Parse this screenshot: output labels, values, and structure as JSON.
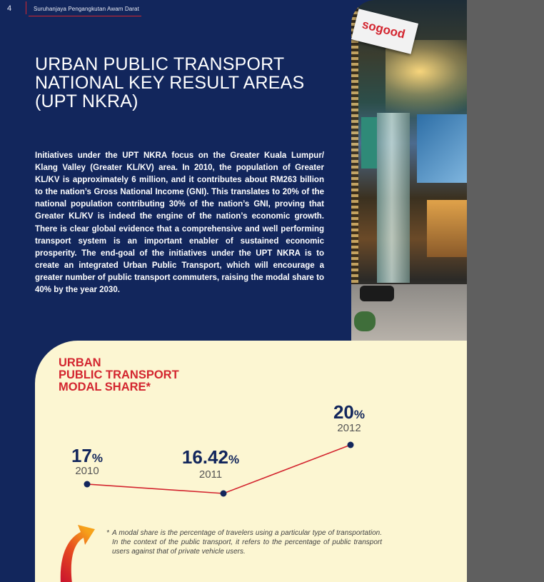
{
  "header": {
    "page_number": "4",
    "running_title": "Suruhanjaya Pengangkutan Awam Darat"
  },
  "title": {
    "line1": "URBAN PUBLIC TRANSPORT",
    "line2": "NATIONAL KEY RESULT AREAS",
    "line3": "(UPT NKRA)"
  },
  "intro": "Initiatives under the UPT NKRA focus on the Greater Kuala Lumpur/ Klang Valley (Greater KL/KV) area. In 2010, the population of Greater KL/KV is approximately 6 million, and it contributes about RM263 billion to the nation’s Gross National Income (GNI). This translates to 20% of the national population contributing 30% of the nation’s GNI, proving that Greater KL/KV is indeed the engine of the nation’s economic growth. There is clear global evidence that a comprehensive and well performing transport system is an important enabler of sustained economic prosperity. The end-goal of the initiatives under the UPT NKRA is to create an integrated Urban Public Transport, which will encourage a greater number of public transport commuters, raising the modal share to 40% by the year 2030.",
  "photo": {
    "sign_text": "sogood"
  },
  "chart_title": {
    "line1": "URBAN",
    "line2": "PUBLIC TRANSPORT",
    "line3": "MODAL SHARE*"
  },
  "chart_data": {
    "type": "line",
    "categories": [
      "2010",
      "2011",
      "2012"
    ],
    "values": [
      17,
      16.42,
      20
    ],
    "value_labels": [
      "17",
      "16.42",
      "20"
    ],
    "unit": "%",
    "title": "URBAN PUBLIC TRANSPORT MODAL SHARE*",
    "line_color": "#d3252f",
    "marker_color": "#12265c"
  },
  "footnote": {
    "asterisk": "*",
    "text": "A modal share is the percentage of travelers using a particular type of transportation. In the context of the public transport, it refers to the percentage of public transport users against that of private vehicle users."
  },
  "colors": {
    "navy": "#12265c",
    "red": "#d3252f",
    "cream": "#fcf6d2"
  },
  "icons": [
    "curved-arrow-icon"
  ]
}
